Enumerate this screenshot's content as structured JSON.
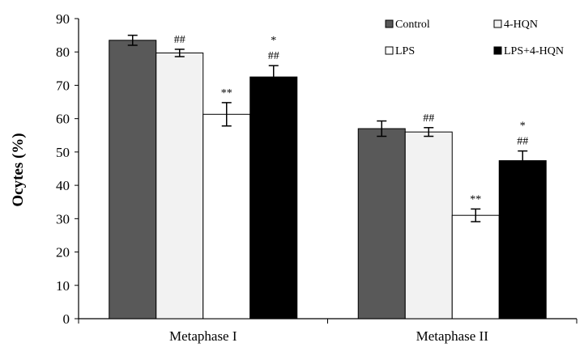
{
  "chart_data": {
    "type": "bar",
    "title": "",
    "xlabel": "",
    "ylabel": "Ocytes (%)",
    "ylim": [
      0,
      90
    ],
    "yticks": [
      0,
      10,
      20,
      30,
      40,
      50,
      60,
      70,
      80,
      90
    ],
    "grid": false,
    "legend_position": "top-right",
    "categories": [
      "Metaphase I",
      "Metaphase II"
    ],
    "series": [
      {
        "name": "Control",
        "color": "#595959",
        "values": [
          83.5,
          57.0
        ],
        "errors": [
          1.5,
          2.3
        ],
        "annotations": [
          [],
          []
        ]
      },
      {
        "name": "4-HQN",
        "color": "#f2f2f2",
        "values": [
          79.7,
          56.0
        ],
        "errors": [
          1.1,
          1.3
        ],
        "annotations": [
          [
            "##"
          ],
          [
            "##"
          ]
        ]
      },
      {
        "name": "LPS",
        "color": "#ffffff",
        "values": [
          61.3,
          31.0
        ],
        "errors": [
          3.5,
          1.9
        ],
        "annotations": [
          [
            "**"
          ],
          [
            "**"
          ]
        ]
      },
      {
        "name": "LPS+4-HQN",
        "color": "#000000",
        "values": [
          72.5,
          47.4
        ],
        "errors": [
          3.4,
          2.9
        ],
        "annotations": [
          [
            "*",
            "##"
          ],
          [
            "*",
            "##"
          ]
        ]
      }
    ]
  }
}
